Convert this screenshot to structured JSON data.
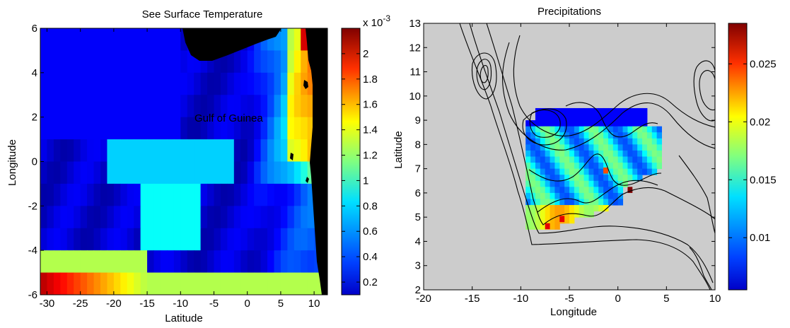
{
  "chart_data": [
    {
      "type": "heatmap",
      "title": "See Surface Temperature",
      "xlabel": "Latitude",
      "ylabel": "Longitude",
      "xlim": [
        -31,
        12
      ],
      "ylim": [
        -6,
        6
      ],
      "x_ticks": [
        "-30",
        "-25",
        "-20",
        "-15",
        "-10",
        "-5",
        "0",
        "5",
        "10"
      ],
      "y_ticks": [
        "-6",
        "-4",
        "-2",
        "0",
        "2",
        "4",
        "6"
      ],
      "annotation": "Gulf of Guinea",
      "land_color": "#000000",
      "colorbar": {
        "colormap": "jet",
        "range": [
          0.1,
          2.2
        ],
        "ticks": [
          "0.2",
          "0.4",
          "0.6",
          "0.8",
          "1",
          "1.2",
          "1.4",
          "1.6",
          "1.8",
          "2"
        ],
        "multiplier": "x 10",
        "exponent": "-3"
      }
    },
    {
      "type": "heatmap",
      "title": "Precipitations",
      "xlabel": "Longitude",
      "ylabel": "Latitude",
      "xlim": [
        -20,
        10
      ],
      "ylim": [
        2,
        13
      ],
      "x_ticks": [
        "-20",
        "-15",
        "-10",
        "-5",
        "0",
        "5",
        "10"
      ],
      "y_ticks": [
        "2",
        "3",
        "4",
        "5",
        "6",
        "7",
        "8",
        "9",
        "10",
        "11",
        "12",
        "13"
      ],
      "background_color": "#cccccc",
      "overlay": "elevation contours",
      "colorbar": {
        "colormap": "jet",
        "range": [
          0.0055,
          0.0285
        ],
        "ticks": [
          "0.01",
          "0.015",
          "0.02",
          "0.025"
        ]
      }
    }
  ]
}
